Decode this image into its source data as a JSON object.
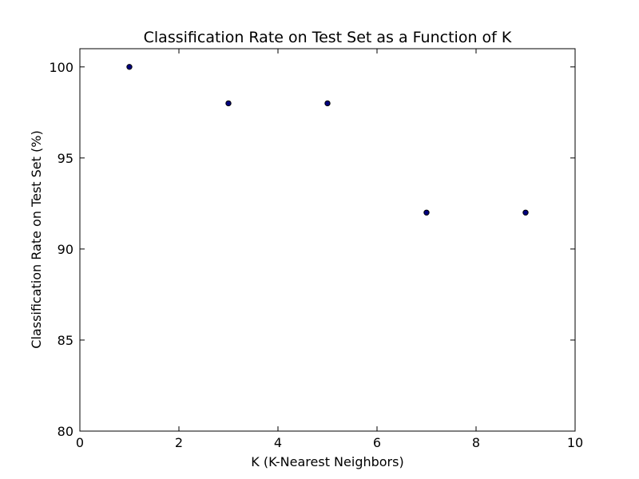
{
  "chart_data": {
    "type": "scatter",
    "title": "Classification Rate on Test Set as a Function of K",
    "xlabel": "K (K-Nearest Neighbors)",
    "ylabel": "Classification Rate on Test Set (%)",
    "xlim": [
      0,
      10
    ],
    "ylim": [
      80,
      101
    ],
    "xticks": [
      0,
      2,
      4,
      6,
      8,
      10
    ],
    "xtick_labels": [
      "0",
      "2",
      "4",
      "6",
      "8",
      "10"
    ],
    "yticks": [
      80,
      85,
      90,
      95,
      100
    ],
    "ytick_labels": [
      "80",
      "85",
      "90",
      "95",
      "100"
    ],
    "grid": false,
    "legend": "none",
    "series": [
      {
        "x": [
          1,
          3,
          5,
          7,
          9
        ],
        "y": [
          100,
          98,
          98,
          92,
          92
        ],
        "color": "#00007f"
      }
    ]
  }
}
